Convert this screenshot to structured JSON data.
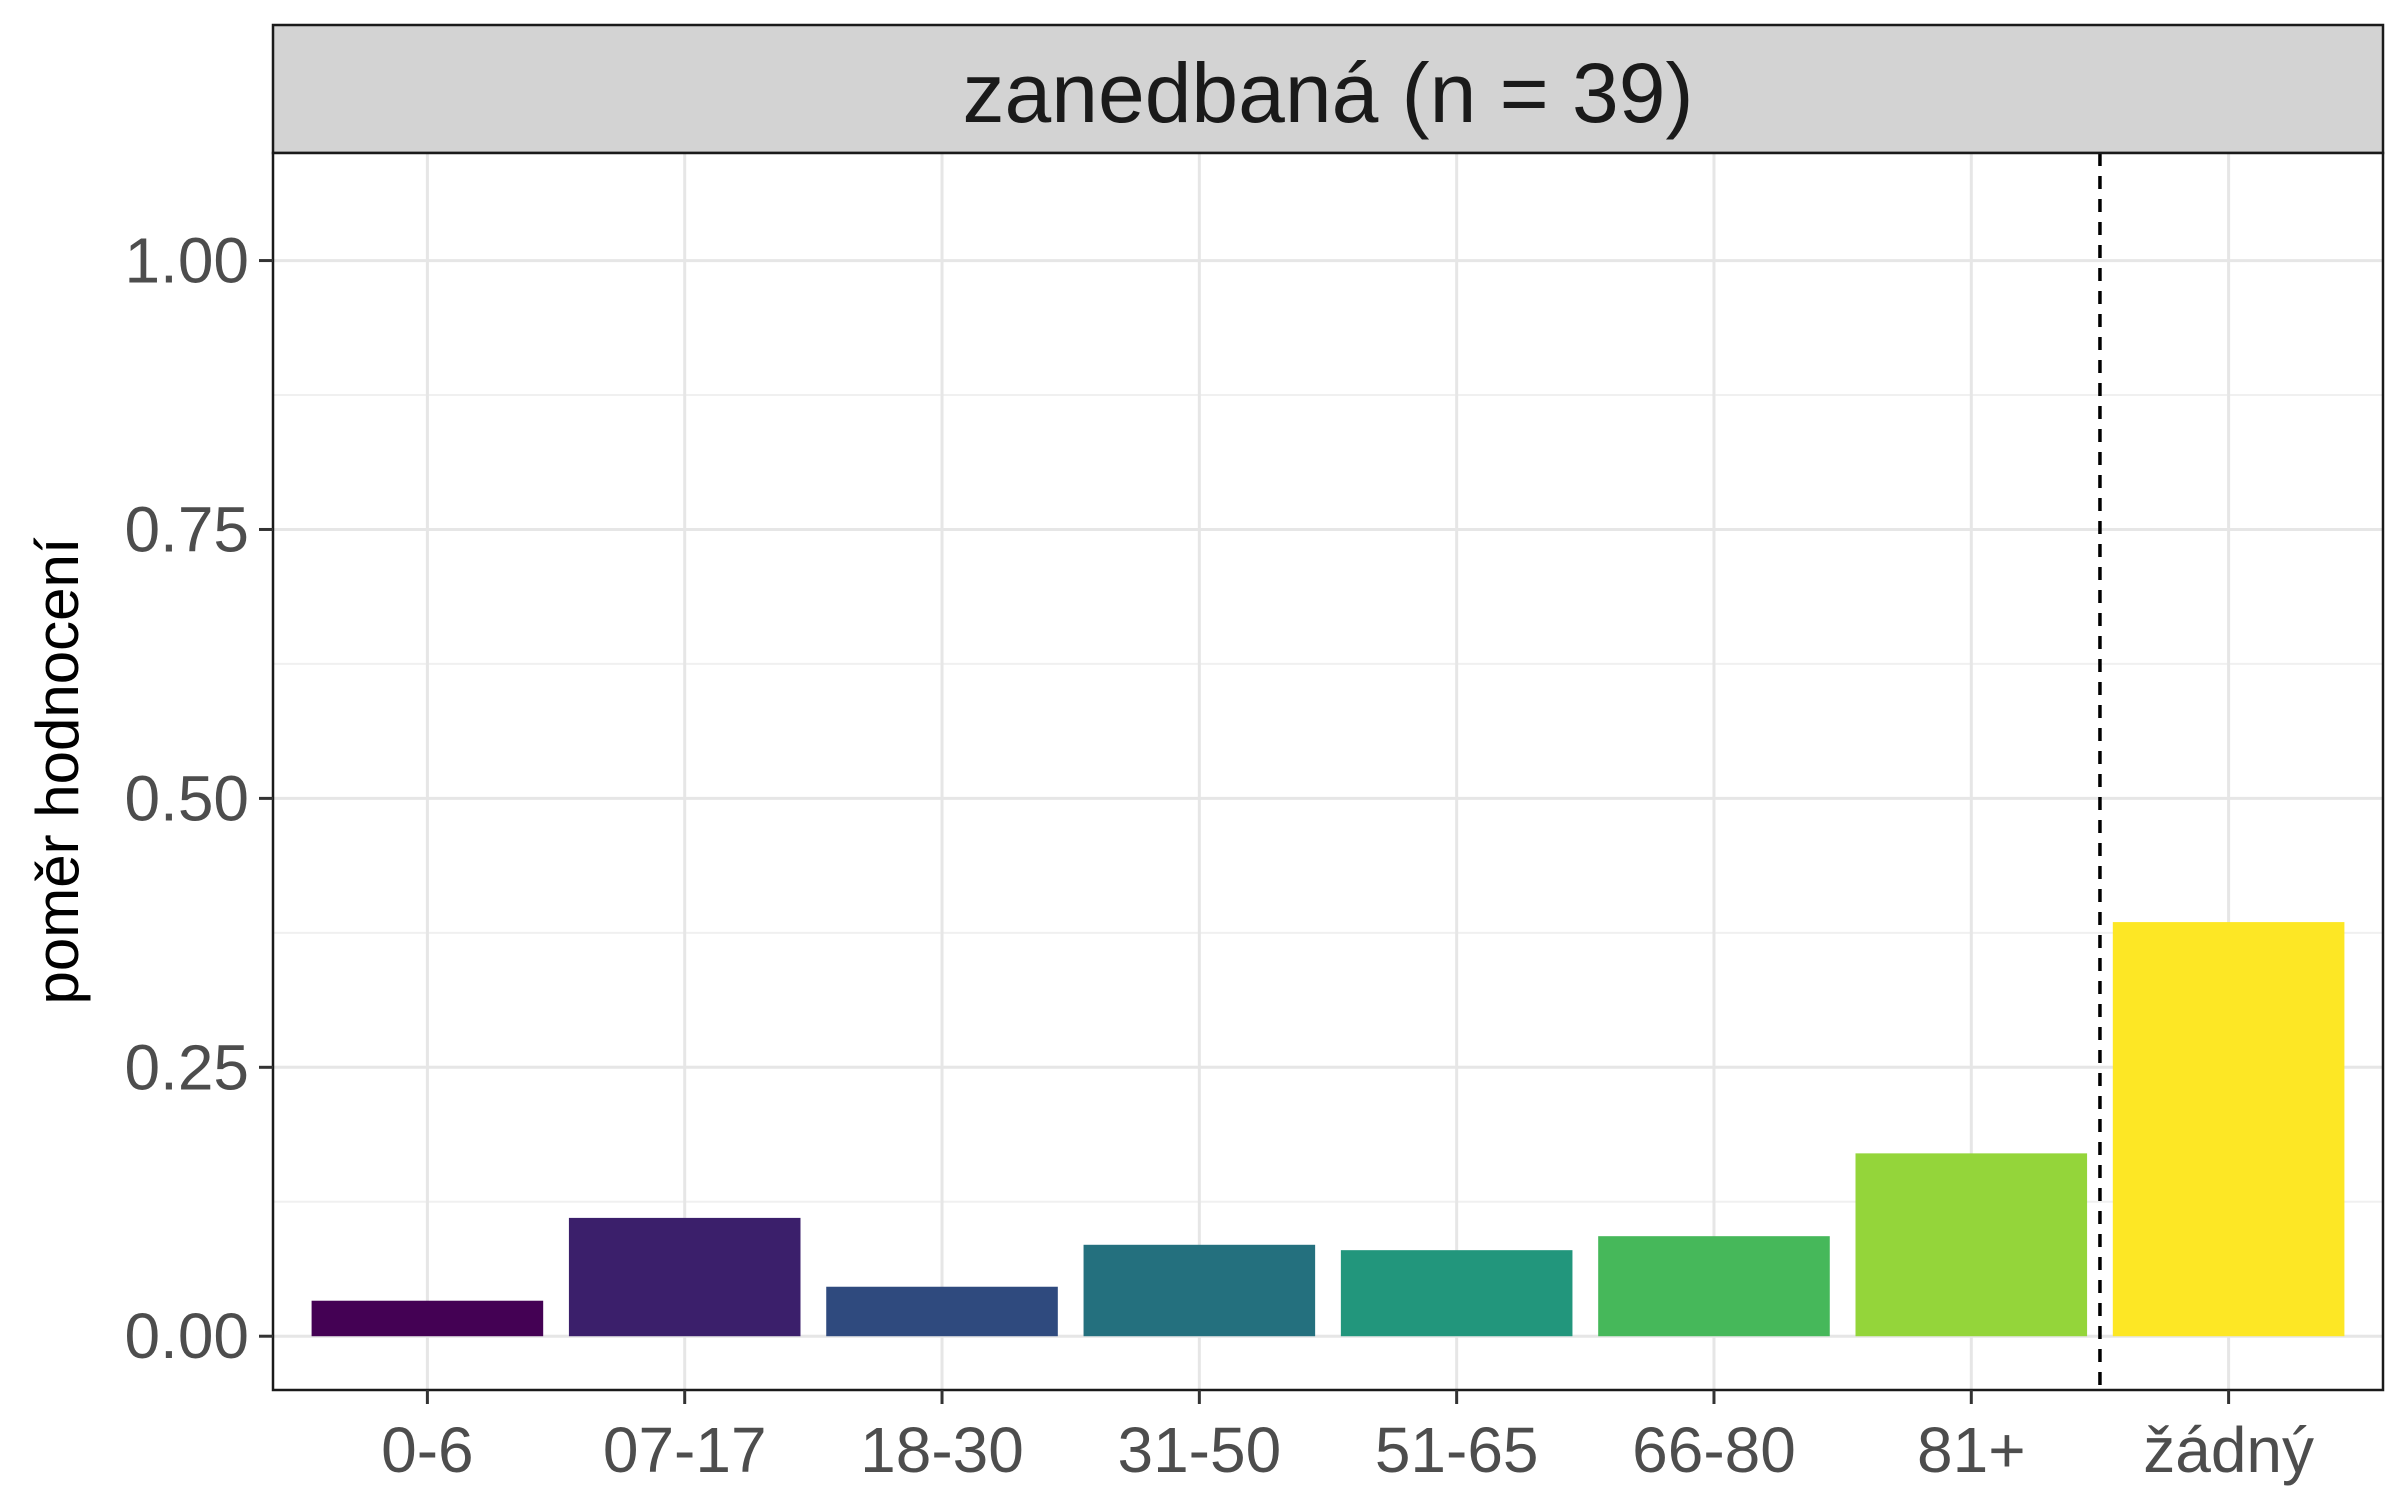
{
  "chart_data": {
    "type": "bar",
    "title": "zanedbaná (n = 39)",
    "xlabel": "",
    "ylabel": "poměr hodnocení",
    "categories": [
      "0-6",
      "07-17",
      "18-30",
      "31-50",
      "51-65",
      "66-80",
      "81+",
      "žádný"
    ],
    "values": [
      0.033,
      0.11,
      0.046,
      0.085,
      0.08,
      0.093,
      0.17,
      0.385
    ],
    "colors": [
      "#440154",
      "#3b1f6b",
      "#2f4a7e",
      "#24707e",
      "#22967c",
      "#46b85a",
      "#94d53a",
      "#fde725"
    ],
    "ylim": [
      -0.05,
      1.1
    ],
    "yticks": [
      0,
      0.25,
      0.5,
      0.75,
      1.0
    ],
    "ytick_labels": [
      "0.00",
      "0.25",
      "0.50",
      "0.75",
      "1.00"
    ],
    "reference_line": {
      "after_category": "81+",
      "style": "dashed"
    },
    "grid": true,
    "legend": "none"
  }
}
